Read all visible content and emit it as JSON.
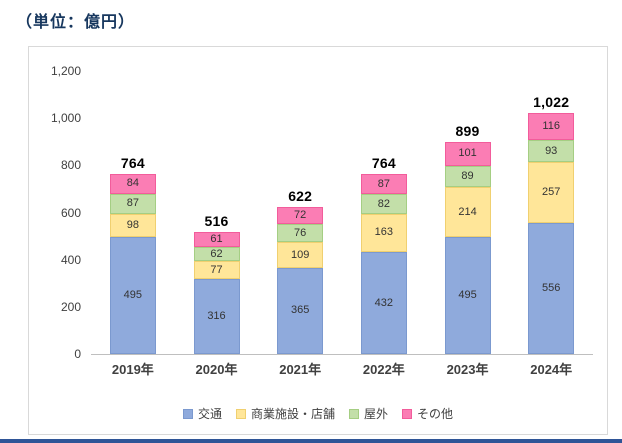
{
  "page": {
    "unit_label": "（単位：億円）"
  },
  "chart_data": {
    "type": "bar",
    "stacked": true,
    "title": "",
    "xlabel": "",
    "ylabel": "",
    "grid": false,
    "legend_position": "bottom",
    "categories": [
      "2019年",
      "2020年",
      "2021年",
      "2022年",
      "2023年",
      "2024年"
    ],
    "series": [
      {
        "key": "transit",
        "name": "交通",
        "color": "#8FAADC",
        "border": "#7B99CF",
        "values": [
          495,
          316,
          365,
          432,
          495,
          556
        ]
      },
      {
        "key": "commercial-store",
        "name": "商業施設・店舗",
        "color": "#FFE699",
        "border": "#F0D070",
        "values": [
          98,
          77,
          109,
          163,
          214,
          257
        ]
      },
      {
        "key": "outdoor",
        "name": "屋外",
        "color": "#C3DFA9",
        "border": "#A5CE83",
        "values": [
          87,
          62,
          76,
          82,
          89,
          93
        ]
      },
      {
        "key": "other",
        "name": "その他",
        "color": "#FB7DB4",
        "border": "#F25C9B",
        "values": [
          84,
          61,
          72,
          87,
          101,
          116
        ]
      }
    ],
    "totals": [
      "764",
      "516",
      "622",
      "764",
      "899",
      "1,022"
    ],
    "y_axis": {
      "min": 0,
      "max": 1200,
      "step": 200,
      "tick_labels": [
        "0",
        "200",
        "400",
        "600",
        "800",
        "1,000",
        "1,200"
      ]
    }
  }
}
